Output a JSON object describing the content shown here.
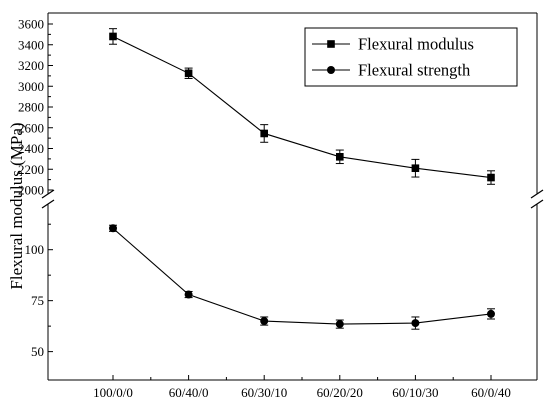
{
  "chart_data": {
    "type": "line",
    "ylabel": "Flexural modulus (MPa)",
    "categories": [
      "100/0/0",
      "60/40/0",
      "60/30/10",
      "60/20/20",
      "60/10/30",
      "60/0/40"
    ],
    "y_axis_break": true,
    "upper_panel": {
      "ylim": [
        2000,
        3600
      ],
      "yticks": [
        "2000",
        "2200",
        "2400",
        "2600",
        "2800",
        "3000",
        "3200",
        "3400",
        "3600"
      ]
    },
    "lower_panel": {
      "ylim": [
        40,
        118
      ],
      "yticks": [
        "50",
        "75",
        "100"
      ]
    },
    "series": [
      {
        "name": "Flexural modulus",
        "panel": "upper",
        "marker": "square",
        "values": [
          3480,
          3125,
          2545,
          2320,
          2210,
          2120
        ],
        "errors": [
          75,
          50,
          85,
          65,
          85,
          65
        ]
      },
      {
        "name": "Flexural strength",
        "panel": "lower",
        "marker": "circle",
        "values": [
          110.5,
          78,
          65,
          63.5,
          64,
          68.5
        ],
        "errors": [
          1.5,
          1.5,
          2,
          2,
          3,
          2.5
        ]
      }
    ],
    "legend": {
      "position": "top-right",
      "entries": [
        "Flexural modulus",
        "Flexural strength"
      ]
    }
  }
}
